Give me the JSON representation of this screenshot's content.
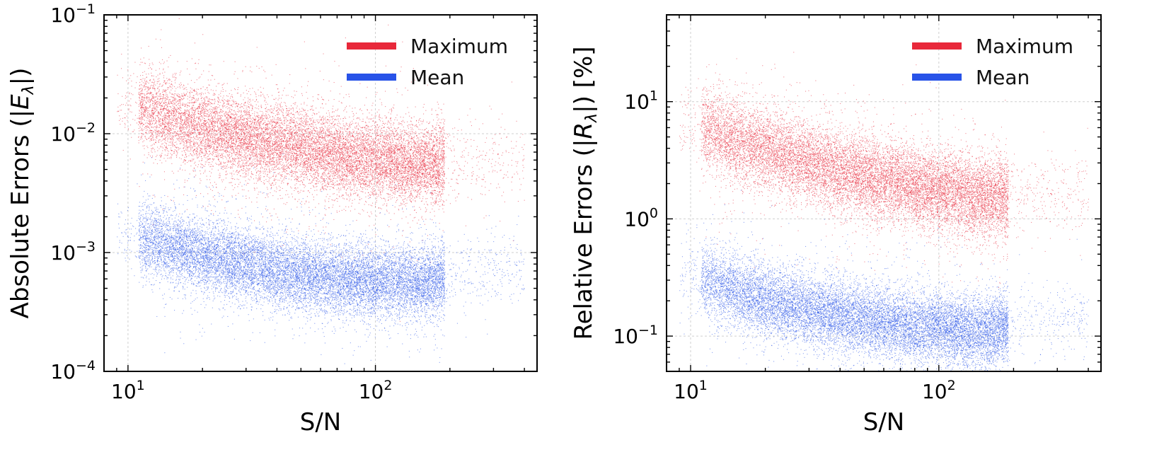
{
  "chart_data": [
    {
      "type": "scatter",
      "panel": "left",
      "xlabel": "S/N",
      "ylabel_prefix": "Absolute Errors (|",
      "ylabel_sym": "E",
      "ylabel_sub": "λ",
      "ylabel_suffix": "|)",
      "xscale": "log",
      "yscale": "log",
      "xlim": [
        8.0,
        450
      ],
      "ylim": [
        0.0001,
        0.1
      ],
      "x_ticks": [
        {
          "value": 10,
          "base": "10",
          "exp": "1"
        },
        {
          "value": 100,
          "base": "10",
          "exp": "2"
        }
      ],
      "y_ticks": [
        {
          "value": 0.0001,
          "base": "10",
          "exp": "−4"
        },
        {
          "value": 0.001,
          "base": "10",
          "exp": "−3"
        },
        {
          "value": 0.01,
          "base": "10",
          "exp": "−2"
        },
        {
          "value": 0.1,
          "base": "10",
          "exp": "−1"
        }
      ],
      "grid": true,
      "legend_position": "top-right",
      "series": [
        {
          "name": "Maximum",
          "color": "#e8283a",
          "trend": [
            [
              10,
              0.018
            ],
            [
              20,
              0.011
            ],
            [
              40,
              0.0082
            ],
            [
              80,
              0.0063
            ],
            [
              150,
              0.0055
            ],
            [
              250,
              0.006
            ]
          ],
          "spread_dex": 0.17
        },
        {
          "name": "Mean",
          "color": "#2853e8",
          "trend": [
            [
              10,
              0.0014
            ],
            [
              20,
              0.00095
            ],
            [
              40,
              0.0007
            ],
            [
              80,
              0.00058
            ],
            [
              150,
              0.00056
            ],
            [
              250,
              0.00065
            ]
          ],
          "spread_dex": 0.15
        }
      ]
    },
    {
      "type": "scatter",
      "panel": "right",
      "xlabel": "S/N",
      "ylabel_prefix": "Relative Errors (|",
      "ylabel_sym": "R",
      "ylabel_sub": "λ",
      "ylabel_suffix": "|) [%]",
      "xscale": "log",
      "yscale": "log",
      "xlim": [
        8.0,
        450
      ],
      "ylim": [
        0.05,
        55
      ],
      "x_ticks": [
        {
          "value": 10,
          "base": "10",
          "exp": "1"
        },
        {
          "value": 100,
          "base": "10",
          "exp": "2"
        }
      ],
      "y_ticks": [
        {
          "value": 0.1,
          "base": "10",
          "exp": "−1"
        },
        {
          "value": 1,
          "base": "10",
          "exp": "0"
        },
        {
          "value": 10,
          "base": "10",
          "exp": "1"
        }
      ],
      "grid": true,
      "legend_position": "top-right",
      "series": [
        {
          "name": "Maximum",
          "color": "#e8283a",
          "trend": [
            [
              10,
              6.5
            ],
            [
              20,
              3.8
            ],
            [
              40,
              2.6
            ],
            [
              80,
              1.9
            ],
            [
              150,
              1.5
            ],
            [
              250,
              1.6
            ]
          ],
          "spread_dex": 0.17
        },
        {
          "name": "Mean",
          "color": "#2853e8",
          "trend": [
            [
              10,
              0.33
            ],
            [
              20,
              0.2
            ],
            [
              40,
              0.15
            ],
            [
              80,
              0.12
            ],
            [
              150,
              0.11
            ],
            [
              250,
              0.13
            ]
          ],
          "spread_dex": 0.15
        }
      ]
    }
  ]
}
